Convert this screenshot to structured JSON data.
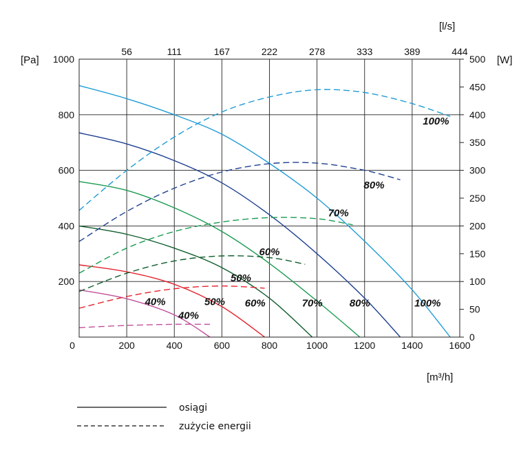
{
  "chart_data": {
    "type": "line",
    "title": "",
    "x_axis": {
      "label": "[m³/h]",
      "range": [
        0,
        1600
      ],
      "ticks": [
        0,
        200,
        400,
        600,
        800,
        1000,
        1200,
        1400,
        1600
      ]
    },
    "x2_axis": {
      "label": "[l/s]",
      "ticks": [
        {
          "label": "56",
          "at_m3h": 200
        },
        {
          "label": "111",
          "at_m3h": 400
        },
        {
          "label": "167",
          "at_m3h": 600
        },
        {
          "label": "222",
          "at_m3h": 800
        },
        {
          "label": "278",
          "at_m3h": 1000
        },
        {
          "label": "333",
          "at_m3h": 1200
        },
        {
          "label": "389",
          "at_m3h": 1400
        },
        {
          "label": "444",
          "at_m3h": 1600
        }
      ]
    },
    "y_axis": {
      "label": "[Pa]",
      "range": [
        0,
        1000
      ],
      "ticks": [
        0,
        200,
        400,
        600,
        800,
        1000
      ]
    },
    "y2_axis": {
      "label": "[W]",
      "range": [
        0,
        500
      ],
      "ticks": [
        0,
        50,
        100,
        150,
        200,
        250,
        300,
        350,
        400,
        450,
        500
      ]
    },
    "series": [
      {
        "name": "100%",
        "kind": "performance",
        "axis": "left",
        "color": "#1e9bd6",
        "x": [
          0,
          200,
          400,
          600,
          800,
          1000,
          1200,
          1400,
          1560
        ],
        "y": [
          905,
          858,
          800,
          730,
          625,
          500,
          345,
          170,
          0
        ]
      },
      {
        "name": "80%",
        "kind": "performance",
        "axis": "left",
        "color": "#1d3f8f",
        "x": [
          0,
          200,
          400,
          600,
          800,
          1000,
          1200,
          1350
        ],
        "y": [
          735,
          695,
          635,
          555,
          440,
          300,
          140,
          0
        ]
      },
      {
        "name": "70%",
        "kind": "performance",
        "axis": "left",
        "color": "#1a9a50",
        "x": [
          0,
          200,
          400,
          600,
          800,
          1000,
          1180
        ],
        "y": [
          560,
          528,
          465,
          380,
          265,
          130,
          0
        ]
      },
      {
        "name": "60%",
        "kind": "performance",
        "axis": "left",
        "color": "#0e5c2c",
        "x": [
          0,
          200,
          400,
          600,
          800,
          980
        ],
        "y": [
          400,
          370,
          320,
          250,
          140,
          0
        ]
      },
      {
        "name": "50%",
        "kind": "performance",
        "axis": "left",
        "color": "#e3222d",
        "x": [
          0,
          200,
          400,
          600,
          780
        ],
        "y": [
          260,
          235,
          190,
          110,
          0
        ]
      },
      {
        "name": "40%",
        "kind": "performance",
        "axis": "left",
        "color": "#c04f9a",
        "x": [
          0,
          200,
          400,
          550
        ],
        "y": [
          170,
          138,
          80,
          0
        ]
      },
      {
        "name": "100%",
        "kind": "energy",
        "axis": "right",
        "color": "#1e9bd6",
        "x": [
          0,
          200,
          400,
          600,
          800,
          1000,
          1200,
          1400,
          1560
        ],
        "y": [
          228,
          300,
          360,
          405,
          432,
          445,
          440,
          420,
          397
        ]
      },
      {
        "name": "80%",
        "kind": "energy",
        "axis": "right",
        "color": "#1d3f8f",
        "x": [
          0,
          200,
          400,
          600,
          800,
          1000,
          1200,
          1350
        ],
        "y": [
          172,
          226,
          268,
          297,
          312,
          313,
          300,
          283
        ]
      },
      {
        "name": "70%",
        "kind": "energy",
        "axis": "right",
        "color": "#1a9a50",
        "x": [
          0,
          200,
          400,
          600,
          800,
          1000,
          1150
        ],
        "y": [
          115,
          160,
          190,
          207,
          215,
          213,
          202
        ]
      },
      {
        "name": "60%",
        "kind": "energy",
        "axis": "right",
        "color": "#0e5c2c",
        "x": [
          0,
          200,
          400,
          600,
          800,
          950
        ],
        "y": [
          82,
          115,
          137,
          146,
          143,
          131
        ]
      },
      {
        "name": "50%",
        "kind": "energy",
        "axis": "right",
        "color": "#e3222d",
        "x": [
          0,
          200,
          400,
          600,
          780
        ],
        "y": [
          52,
          73,
          87,
          92,
          88
        ]
      },
      {
        "name": "40%",
        "kind": "energy",
        "axis": "right",
        "color": "#c04f9a",
        "x": [
          0,
          200,
          400,
          550
        ],
        "y": [
          17,
          21,
          23,
          23
        ]
      }
    ],
    "annotations": [
      {
        "text": "100%",
        "x": 1500,
        "y_left": 765
      },
      {
        "text": "80%",
        "x": 1240,
        "y_left": 535
      },
      {
        "text": "70%",
        "x": 1090,
        "y_left": 435
      },
      {
        "text": "60%",
        "x": 800,
        "y_left": 295
      },
      {
        "text": "50%",
        "x": 680,
        "y_left": 200
      },
      {
        "text": "40%",
        "x": 460,
        "y_left": 65
      },
      {
        "text": "100%",
        "x": 1465,
        "y_left": 110
      },
      {
        "text": "80%",
        "x": 1180,
        "y_left": 110
      },
      {
        "text": "70%",
        "x": 980,
        "y_left": 110
      },
      {
        "text": "60%",
        "x": 740,
        "y_left": 110
      },
      {
        "text": "50%",
        "x": 570,
        "y_left": 115
      },
      {
        "text": "40%",
        "x": 320,
        "y_left": 115
      }
    ],
    "legend": [
      {
        "label": "osiągi",
        "style": "solid"
      },
      {
        "label": "zużycie energii",
        "style": "dashed"
      }
    ],
    "legend_position": "bottom-left",
    "grid": true
  }
}
